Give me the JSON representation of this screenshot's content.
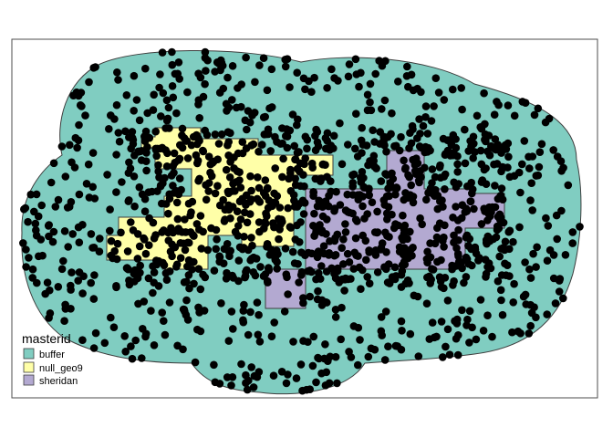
{
  "legend": {
    "title": "masterid",
    "items": [
      {
        "label": "buffer",
        "color": "#80cdc1"
      },
      {
        "label": "null_geo9",
        "color": "#ffffa8"
      },
      {
        "label": "sheridan",
        "color": "#b3a9d1"
      }
    ]
  },
  "colors": {
    "background": "#ffffff",
    "frame": "#4d4d4d",
    "outline": "#3d3d3d",
    "points": "#000000"
  },
  "point_count_approx": 1400
}
